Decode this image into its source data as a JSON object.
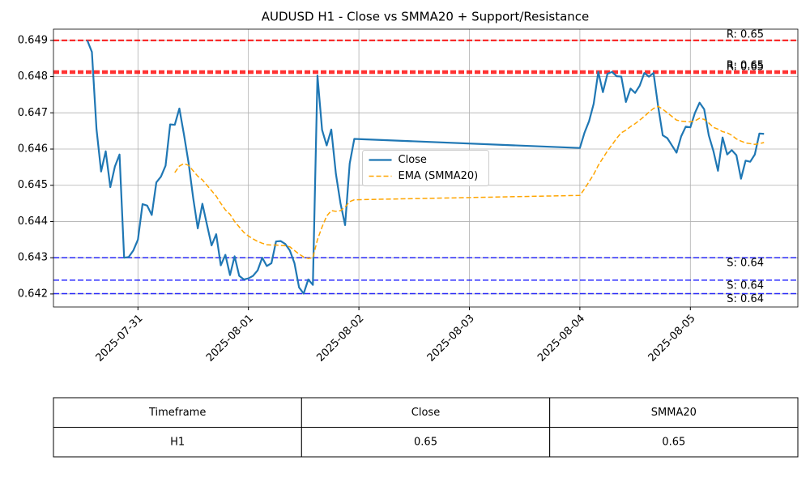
{
  "chart_data": {
    "type": "line",
    "title": "AUDUSD H1 - Close vs SMMA20 + Support/Resistance",
    "x": [
      "2025-07-30T13:00",
      "2025-07-30T14:00",
      "2025-07-30T15:00",
      "2025-07-30T16:00",
      "2025-07-30T17:00",
      "2025-07-30T18:00",
      "2025-07-30T19:00",
      "2025-07-30T20:00",
      "2025-07-30T21:00",
      "2025-07-30T22:00",
      "2025-07-30T23:00",
      "2025-07-31T00:00",
      "2025-07-31T01:00",
      "2025-07-31T02:00",
      "2025-07-31T03:00",
      "2025-07-31T04:00",
      "2025-07-31T05:00",
      "2025-07-31T06:00",
      "2025-07-31T07:00",
      "2025-07-31T08:00",
      "2025-07-31T09:00",
      "2025-07-31T10:00",
      "2025-07-31T11:00",
      "2025-07-31T12:00",
      "2025-07-31T13:00",
      "2025-07-31T14:00",
      "2025-07-31T15:00",
      "2025-07-31T16:00",
      "2025-07-31T17:00",
      "2025-07-31T18:00",
      "2025-07-31T19:00",
      "2025-07-31T20:00",
      "2025-07-31T21:00",
      "2025-07-31T22:00",
      "2025-07-31T23:00",
      "2025-08-01T00:00",
      "2025-08-01T01:00",
      "2025-08-01T02:00",
      "2025-08-01T03:00",
      "2025-08-01T04:00",
      "2025-08-01T05:00",
      "2025-08-01T06:00",
      "2025-08-01T07:00",
      "2025-08-01T08:00",
      "2025-08-01T09:00",
      "2025-08-01T10:00",
      "2025-08-01T11:00",
      "2025-08-01T12:00",
      "2025-08-01T13:00",
      "2025-08-01T14:00",
      "2025-08-01T15:00",
      "2025-08-01T16:00",
      "2025-08-01T17:00",
      "2025-08-01T18:00",
      "2025-08-01T19:00",
      "2025-08-01T20:00",
      "2025-08-01T21:00",
      "2025-08-01T22:00",
      "2025-08-01T23:00",
      "2025-08-04T00:00",
      "2025-08-04T01:00",
      "2025-08-04T02:00",
      "2025-08-04T03:00",
      "2025-08-04T04:00",
      "2025-08-04T05:00",
      "2025-08-04T06:00",
      "2025-08-04T07:00",
      "2025-08-04T08:00",
      "2025-08-04T09:00",
      "2025-08-04T10:00",
      "2025-08-04T11:00",
      "2025-08-04T12:00",
      "2025-08-04T13:00",
      "2025-08-04T14:00",
      "2025-08-04T15:00",
      "2025-08-04T16:00",
      "2025-08-04T17:00",
      "2025-08-04T18:00",
      "2025-08-04T19:00",
      "2025-08-04T20:00",
      "2025-08-04T21:00",
      "2025-08-04T22:00",
      "2025-08-04T23:00",
      "2025-08-05T00:00",
      "2025-08-05T01:00",
      "2025-08-05T02:00",
      "2025-08-05T03:00",
      "2025-08-05T04:00",
      "2025-08-05T05:00",
      "2025-08-05T06:00",
      "2025-08-05T07:00",
      "2025-08-05T08:00",
      "2025-08-05T09:00",
      "2025-08-05T10:00",
      "2025-08-05T11:00",
      "2025-08-05T12:00",
      "2025-08-05T13:00",
      "2025-08-05T14:00",
      "2025-08-05T15:00",
      "2025-08-05T16:00"
    ],
    "series": [
      {
        "name": "Close",
        "color": "#1f77b4",
        "linestyle": "solid",
        "values": [
          0.649,
          0.64868,
          0.64655,
          0.64538,
          0.64594,
          0.64495,
          0.64552,
          0.64585,
          0.643,
          0.64302,
          0.6432,
          0.6435,
          0.64448,
          0.64444,
          0.64418,
          0.64508,
          0.64524,
          0.64554,
          0.64668,
          0.64667,
          0.64712,
          0.6464,
          0.64562,
          0.64465,
          0.64381,
          0.64449,
          0.64391,
          0.64334,
          0.64365,
          0.64279,
          0.64308,
          0.64252,
          0.64304,
          0.6425,
          0.6424,
          0.64243,
          0.6425,
          0.64265,
          0.643,
          0.64277,
          0.64285,
          0.64345,
          0.64346,
          0.64338,
          0.6432,
          0.64285,
          0.64218,
          0.64201,
          0.6424,
          0.64225,
          0.64803,
          0.64653,
          0.6461,
          0.64654,
          0.64532,
          0.6445,
          0.6439,
          0.6456,
          0.64628,
          0.64603,
          0.64645,
          0.64677,
          0.64725,
          0.64813,
          0.64757,
          0.64808,
          0.64813,
          0.64801,
          0.648,
          0.6473,
          0.64767,
          0.64755,
          0.64775,
          0.6481,
          0.648,
          0.6481,
          0.64718,
          0.64638,
          0.6463,
          0.6461,
          0.6459,
          0.64635,
          0.64662,
          0.6466,
          0.647,
          0.64728,
          0.6471,
          0.64638,
          0.64595,
          0.6454,
          0.64632,
          0.64585,
          0.64597,
          0.64583,
          0.64518,
          0.64568,
          0.64565,
          0.64585,
          0.64643,
          0.64642
        ]
      },
      {
        "name": "EMA (SMMA20)",
        "color": "orange",
        "linestyle": "dashed",
        "values": [
          null,
          null,
          null,
          null,
          null,
          null,
          null,
          null,
          null,
          null,
          null,
          null,
          null,
          null,
          null,
          null,
          null,
          null,
          null,
          0.64535,
          0.64553,
          0.6456,
          0.64555,
          0.6454,
          0.64525,
          0.64515,
          0.645,
          0.64485,
          0.6447,
          0.6445,
          0.64432,
          0.6442,
          0.644,
          0.64385,
          0.6437,
          0.6436,
          0.64352,
          0.64345,
          0.6434,
          0.64336,
          0.64335,
          0.64335,
          0.64334,
          0.64333,
          0.6433,
          0.6432,
          0.6431,
          0.64302,
          0.64298,
          0.643,
          0.6435,
          0.64385,
          0.64415,
          0.6443,
          0.64428,
          0.6443,
          0.6444,
          0.64455,
          0.6446,
          0.64472,
          0.6449,
          0.6451,
          0.6453,
          0.64555,
          0.64575,
          0.64595,
          0.64612,
          0.6463,
          0.64645,
          0.64652,
          0.64662,
          0.6467,
          0.6468,
          0.6469,
          0.64702,
          0.64712,
          0.64718,
          0.6471,
          0.647,
          0.6469,
          0.6468,
          0.64677,
          0.64676,
          0.64675,
          0.64678,
          0.64685,
          0.64682,
          0.64672,
          0.6466,
          0.64655,
          0.64648,
          0.64645,
          0.64638,
          0.64628,
          0.64622,
          0.64617,
          0.64615,
          0.64613,
          0.64615,
          0.64618
        ]
      }
    ],
    "resistance": [
      {
        "value": 0.649,
        "label": "R: 0.65"
      },
      {
        "value": 0.64815,
        "label": "R: 0.65"
      },
      {
        "value": 0.6481,
        "label": "R: 0.65"
      }
    ],
    "resistance_color": "red",
    "support": [
      {
        "value": 0.643,
        "label": "S: 0.64"
      },
      {
        "value": 0.64238,
        "label": "S: 0.64"
      },
      {
        "value": 0.64201,
        "label": "S: 0.64"
      }
    ],
    "support_color": "blue",
    "xlim": [
      "2025-07-30T05:39",
      "2025-08-05T23:21"
    ],
    "xticks": [
      "2025-07-31",
      "2025-08-01",
      "2025-08-02",
      "2025-08-03",
      "2025-08-04",
      "2025-08-05"
    ],
    "ylim": [
      0.64164,
      0.64931
    ],
    "yticks": [
      0.642,
      0.643,
      0.644,
      0.645,
      0.646,
      0.647,
      0.648,
      0.649
    ],
    "grid": true,
    "legend": "center"
  },
  "table": {
    "columns": [
      "Timeframe",
      "Close",
      "SMMA20"
    ],
    "rows": [
      [
        "H1",
        "0.65",
        "0.65"
      ]
    ]
  }
}
